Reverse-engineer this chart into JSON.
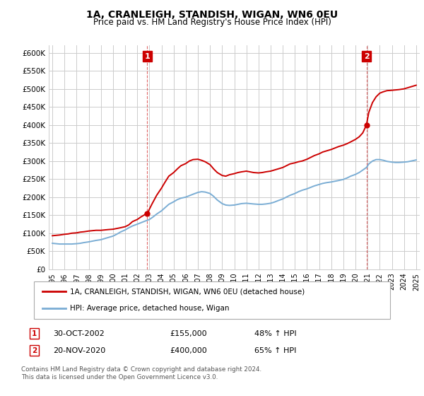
{
  "title": "1A, CRANLEIGH, STANDISH, WIGAN, WN6 0EU",
  "subtitle": "Price paid vs. HM Land Registry's House Price Index (HPI)",
  "legend_label_red": "1A, CRANLEIGH, STANDISH, WIGAN, WN6 0EU (detached house)",
  "legend_label_blue": "HPI: Average price, detached house, Wigan",
  "annotation1_text": "30-OCT-2002",
  "annotation1_value": "£155,000",
  "annotation1_hpi": "48% ↑ HPI",
  "annotation2_text": "20-NOV-2020",
  "annotation2_value": "£400,000",
  "annotation2_hpi": "65% ↑ HPI",
  "footnote1": "Contains HM Land Registry data © Crown copyright and database right 2024.",
  "footnote2": "This data is licensed under the Open Government Licence v3.0.",
  "ylim": [
    0,
    620000
  ],
  "yticks": [
    0,
    50000,
    100000,
    150000,
    200000,
    250000,
    300000,
    350000,
    400000,
    450000,
    500000,
    550000,
    600000
  ],
  "xlim_left": 1994.7,
  "xlim_right": 2025.3,
  "background_color": "#ffffff",
  "plot_bg_color": "#ffffff",
  "grid_color": "#cccccc",
  "red_color": "#cc0000",
  "blue_color": "#7aadd4",
  "annotation_box_color": "#cc0000",
  "marker1_x": 2002.83,
  "marker1_y": 155000,
  "marker2_x": 2020.9,
  "marker2_y": 400000,
  "red_x": [
    1995.0,
    1995.3,
    1995.6,
    1996.0,
    1996.3,
    1996.6,
    1997.0,
    1997.3,
    1997.6,
    1998.0,
    1998.3,
    1998.6,
    1999.0,
    1999.3,
    1999.6,
    2000.0,
    2000.3,
    2000.6,
    2001.0,
    2001.3,
    2001.6,
    2002.0,
    2002.3,
    2002.6,
    2002.83,
    2003.2,
    2003.6,
    2004.0,
    2004.3,
    2004.6,
    2005.0,
    2005.3,
    2005.6,
    2006.0,
    2006.3,
    2006.6,
    2007.0,
    2007.3,
    2007.6,
    2008.0,
    2008.3,
    2008.6,
    2009.0,
    2009.3,
    2009.6,
    2010.0,
    2010.3,
    2010.6,
    2011.0,
    2011.3,
    2011.6,
    2012.0,
    2012.3,
    2012.6,
    2013.0,
    2013.3,
    2013.6,
    2014.0,
    2014.3,
    2014.6,
    2015.0,
    2015.3,
    2015.6,
    2016.0,
    2016.3,
    2016.6,
    2017.0,
    2017.3,
    2017.6,
    2018.0,
    2018.3,
    2018.6,
    2019.0,
    2019.3,
    2019.6,
    2020.0,
    2020.3,
    2020.6,
    2020.9,
    2021.1,
    2021.4,
    2021.7,
    2022.0,
    2022.3,
    2022.6,
    2023.0,
    2023.3,
    2023.6,
    2024.0,
    2024.3,
    2024.6,
    2025.0
  ],
  "red_y": [
    93000,
    94000,
    95000,
    97000,
    98000,
    100000,
    101000,
    103000,
    104000,
    106000,
    107000,
    108000,
    108000,
    109000,
    110000,
    111000,
    113000,
    115000,
    118000,
    123000,
    132000,
    138000,
    145000,
    151000,
    155000,
    180000,
    205000,
    225000,
    242000,
    258000,
    268000,
    278000,
    287000,
    293000,
    300000,
    304000,
    305000,
    302000,
    298000,
    290000,
    278000,
    268000,
    260000,
    258000,
    262000,
    265000,
    268000,
    270000,
    272000,
    270000,
    268000,
    267000,
    268000,
    270000,
    272000,
    275000,
    278000,
    282000,
    287000,
    292000,
    295000,
    298000,
    300000,
    305000,
    310000,
    315000,
    320000,
    325000,
    328000,
    332000,
    336000,
    340000,
    344000,
    348000,
    353000,
    360000,
    367000,
    378000,
    400000,
    435000,
    462000,
    478000,
    488000,
    492000,
    495000,
    496000,
    497000,
    498000,
    500000,
    503000,
    506000,
    510000
  ],
  "blue_x": [
    1995.0,
    1995.3,
    1995.6,
    1996.0,
    1996.3,
    1996.6,
    1997.0,
    1997.3,
    1997.6,
    1998.0,
    1998.3,
    1998.6,
    1999.0,
    1999.3,
    1999.6,
    2000.0,
    2000.3,
    2000.6,
    2001.0,
    2001.3,
    2001.6,
    2002.0,
    2002.3,
    2002.6,
    2003.0,
    2003.3,
    2003.6,
    2004.0,
    2004.3,
    2004.6,
    2005.0,
    2005.3,
    2005.6,
    2006.0,
    2006.3,
    2006.6,
    2007.0,
    2007.3,
    2007.6,
    2008.0,
    2008.3,
    2008.6,
    2009.0,
    2009.3,
    2009.6,
    2010.0,
    2010.3,
    2010.6,
    2011.0,
    2011.3,
    2011.6,
    2012.0,
    2012.3,
    2012.6,
    2013.0,
    2013.3,
    2013.6,
    2014.0,
    2014.3,
    2014.6,
    2015.0,
    2015.3,
    2015.6,
    2016.0,
    2016.3,
    2016.6,
    2017.0,
    2017.3,
    2017.6,
    2018.0,
    2018.3,
    2018.6,
    2019.0,
    2019.3,
    2019.6,
    2020.0,
    2020.3,
    2020.6,
    2020.9,
    2021.1,
    2021.4,
    2021.7,
    2022.0,
    2022.3,
    2022.6,
    2023.0,
    2023.3,
    2023.6,
    2024.0,
    2024.3,
    2024.6,
    2025.0
  ],
  "blue_y": [
    72000,
    71000,
    70000,
    70000,
    70000,
    70000,
    71000,
    72000,
    74000,
    76000,
    78000,
    80000,
    82000,
    85000,
    88000,
    92000,
    97000,
    103000,
    109000,
    115000,
    120000,
    125000,
    129000,
    133000,
    138000,
    145000,
    153000,
    162000,
    171000,
    180000,
    187000,
    193000,
    197000,
    200000,
    204000,
    208000,
    213000,
    215000,
    214000,
    210000,
    202000,
    192000,
    182000,
    178000,
    177000,
    178000,
    180000,
    182000,
    183000,
    182000,
    181000,
    180000,
    180000,
    181000,
    183000,
    186000,
    190000,
    195000,
    200000,
    205000,
    210000,
    215000,
    219000,
    223000,
    227000,
    231000,
    235000,
    238000,
    240000,
    242000,
    244000,
    246000,
    249000,
    253000,
    258000,
    263000,
    268000,
    275000,
    282000,
    292000,
    300000,
    304000,
    304000,
    302000,
    299000,
    297000,
    296000,
    296000,
    297000,
    298000,
    300000,
    303000
  ]
}
